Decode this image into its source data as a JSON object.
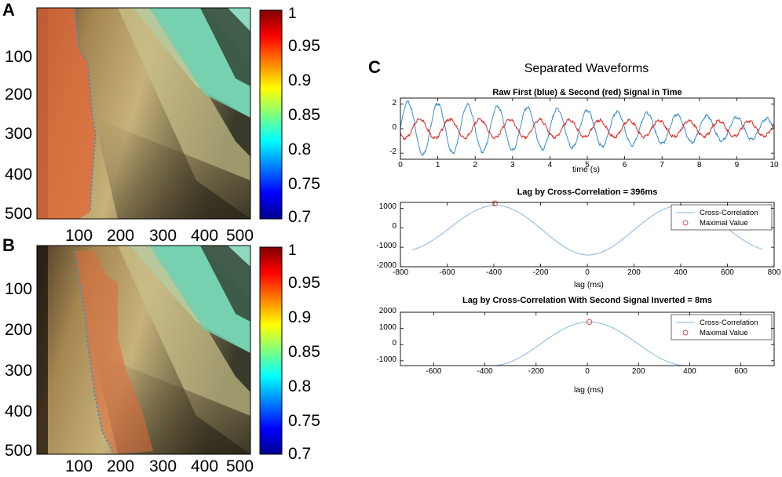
{
  "panels": {
    "A": {
      "letter": "A",
      "colorbar_ticks": [
        "1",
        "0.95",
        "0.9",
        "0.85",
        "0.8",
        "0.75",
        "0.7"
      ],
      "x_ticks": [
        "100",
        "200",
        "300",
        "400",
        "500"
      ],
      "y_ticks": [
        "100",
        "200",
        "300",
        "400",
        "500"
      ]
    },
    "B": {
      "letter": "B",
      "colorbar_ticks": [
        "1",
        "0.95",
        "0.9",
        "0.85",
        "0.8",
        "0.75",
        "0.7"
      ],
      "x_ticks": [
        "100",
        "200",
        "300",
        "400",
        "500"
      ],
      "y_ticks": [
        "100",
        "200",
        "300",
        "400",
        "500"
      ]
    },
    "C": {
      "letter": "C",
      "title": "Separated Waveforms"
    }
  },
  "colors": {
    "blue_series": "#3a8fcf",
    "red_series": "#e0302a",
    "xcorr_line": "#86b8e3",
    "marker": "#e05050",
    "image_tan": "#b59a5c",
    "image_green": "#7fd6b4",
    "overlay_orange": "#e06a3a"
  },
  "chart_data": [
    {
      "type": "line",
      "title": "Raw First (blue) & Second (red) Signal in Time",
      "xlabel": "time (s)",
      "ylabel": "",
      "xlim": [
        0,
        10
      ],
      "ylim": [
        -2.5,
        2.5
      ],
      "x_ticks": [
        "0",
        "1",
        "2",
        "3",
        "4",
        "5",
        "6",
        "7",
        "8",
        "9",
        "10"
      ],
      "y_ticks": [
        "2",
        "0",
        "-2"
      ],
      "series": [
        {
          "name": "First signal (blue)",
          "frequency_hz": 1.25,
          "amplitude_start": 2.2,
          "amplitude_end": 0.8
        },
        {
          "name": "Second signal (red)",
          "frequency_hz": 1.25,
          "amplitude_start": 0.8,
          "amplitude_end": 0.6
        }
      ]
    },
    {
      "type": "line",
      "title": "Lag by Cross-Correlation = 396ms",
      "xlabel": "lag (ms)",
      "ylabel": "",
      "xlim": [
        -800,
        800
      ],
      "ylim": [
        -2000,
        1300
      ],
      "x_ticks": [
        "-800",
        "-600",
        "-400",
        "-200",
        "0",
        "200",
        "400",
        "600",
        "800"
      ],
      "y_ticks": [
        "1000",
        "0",
        "-1000",
        "-2000"
      ],
      "series": [
        {
          "name": "Cross-Correlation",
          "x_range": [
            -750,
            750
          ],
          "peak_value": 1250,
          "trough_value": -1400,
          "period_ms": 800
        }
      ],
      "max_point": {
        "x": -396,
        "y": 1250
      },
      "legend": [
        "Cross-Correlation",
        "Maximal Value"
      ]
    },
    {
      "type": "line",
      "title": "Lag by Cross-Correlation With Second Signal Inverted = 8ms",
      "xlabel": "lag (ms)",
      "ylabel": "",
      "xlim": [
        -730,
        730
      ],
      "ylim": [
        -1300,
        2000
      ],
      "x_ticks": [
        "-600",
        "-400",
        "-200",
        "0",
        "200",
        "400",
        "600"
      ],
      "y_ticks": [
        "2000",
        "1000",
        "0",
        "-1000"
      ],
      "series": [
        {
          "name": "Cross-Correlation",
          "x_range": [
            -380,
            380
          ],
          "peak_value": 1400,
          "trough_value": -1300
        }
      ],
      "max_point": {
        "x": 8,
        "y": 1400
      },
      "legend": [
        "Cross-Correlation",
        "Maximal Value"
      ]
    }
  ]
}
